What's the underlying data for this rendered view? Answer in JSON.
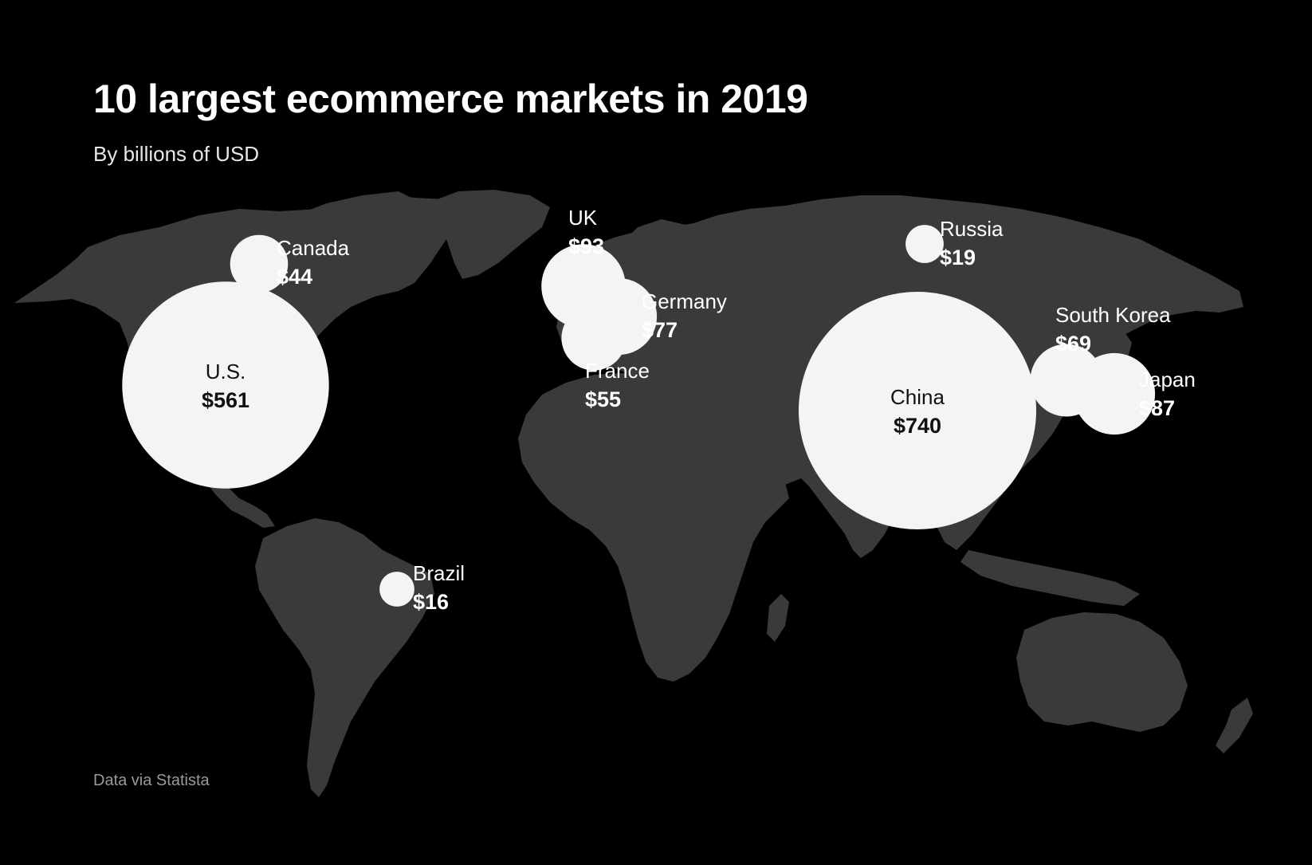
{
  "title": "10 largest ecommerce markets in 2019",
  "subtitle": "By billions of USD",
  "source": "Data via Statista",
  "colors": {
    "background": "#000000",
    "land": "#3a3a3c",
    "bubble": "#f4f4f4",
    "text": "#ffffff",
    "source_text": "#9a9a9a"
  },
  "markets": [
    {
      "name": "U.S.",
      "label": "$561",
      "value": 561
    },
    {
      "name": "Canada",
      "label": "$44",
      "value": 44
    },
    {
      "name": "Brazil",
      "label": "$16",
      "value": 16
    },
    {
      "name": "UK",
      "label": "$93",
      "value": 93
    },
    {
      "name": "Germany",
      "label": "$77",
      "value": 77
    },
    {
      "name": "France",
      "label": "$55",
      "value": 55
    },
    {
      "name": "Russia",
      "label": "$19",
      "value": 19
    },
    {
      "name": "China",
      "label": "$740",
      "value": 740
    },
    {
      "name": "South Korea",
      "label": "$69",
      "value": 69
    },
    {
      "name": "Japan",
      "label": "$87",
      "value": 87
    }
  ]
}
